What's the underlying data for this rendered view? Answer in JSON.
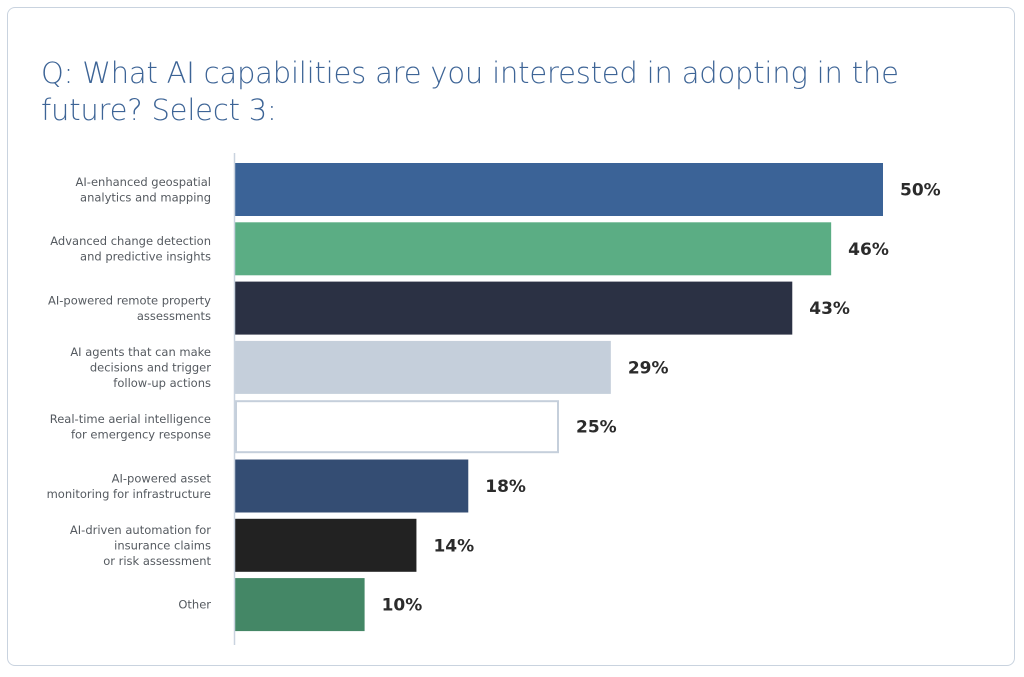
{
  "chart_data": {
    "type": "bar",
    "orientation": "horizontal",
    "title": "Q: What AI capabilities are you interested in adopting in the future? Select 3:",
    "xlabel": "",
    "ylabel": "",
    "xlim": [
      0,
      50
    ],
    "grid": false,
    "legend": "none",
    "value_suffix": "%",
    "categories": [
      "AI-enhanced geospatial analytics and mapping",
      "Advanced change detection and predictive insights",
      "AI-powered remote property assessments",
      "AI agents that can make decisions and trigger follow-up actions",
      "Real-time aerial intelligence for emergency response",
      "AI-powered asset monitoring for infrastructure",
      "AI-driven automation for insurance claims or risk assessment",
      "Other"
    ],
    "category_lines": [
      [
        "AI-enhanced geospatial",
        "analytics and mapping"
      ],
      [
        "Advanced change detection",
        "and predictive insights"
      ],
      [
        "AI-powered remote property",
        "assessments"
      ],
      [
        "AI agents that can make",
        "decisions and trigger",
        "follow-up actions"
      ],
      [
        "Real-time aerial intelligence",
        "for emergency response"
      ],
      [
        "AI-powered asset",
        "monitoring for infrastructure"
      ],
      [
        "AI-driven automation for",
        "insurance claims",
        "or risk assessment"
      ],
      [
        "Other"
      ]
    ],
    "values": [
      50,
      46,
      43,
      29,
      25,
      18,
      14,
      10
    ],
    "value_labels": [
      "50%",
      "46%",
      "43%",
      "29%",
      "25%",
      "18%",
      "14%",
      "10%"
    ],
    "bar_colors": [
      "#3b6397",
      "#5bad84",
      "#2b3144",
      "#c5cfdb",
      "#ffffff",
      "#344d73",
      "#222222",
      "#448766"
    ],
    "bar_outline_colors": [
      "none",
      "none",
      "none",
      "none",
      "#c5cfdb",
      "none",
      "none",
      "none"
    ]
  },
  "colors": {
    "title": "#3d6496",
    "axis": "#c9d3df",
    "label_text": "#555a60",
    "value_text": "#2b2b2b"
  }
}
